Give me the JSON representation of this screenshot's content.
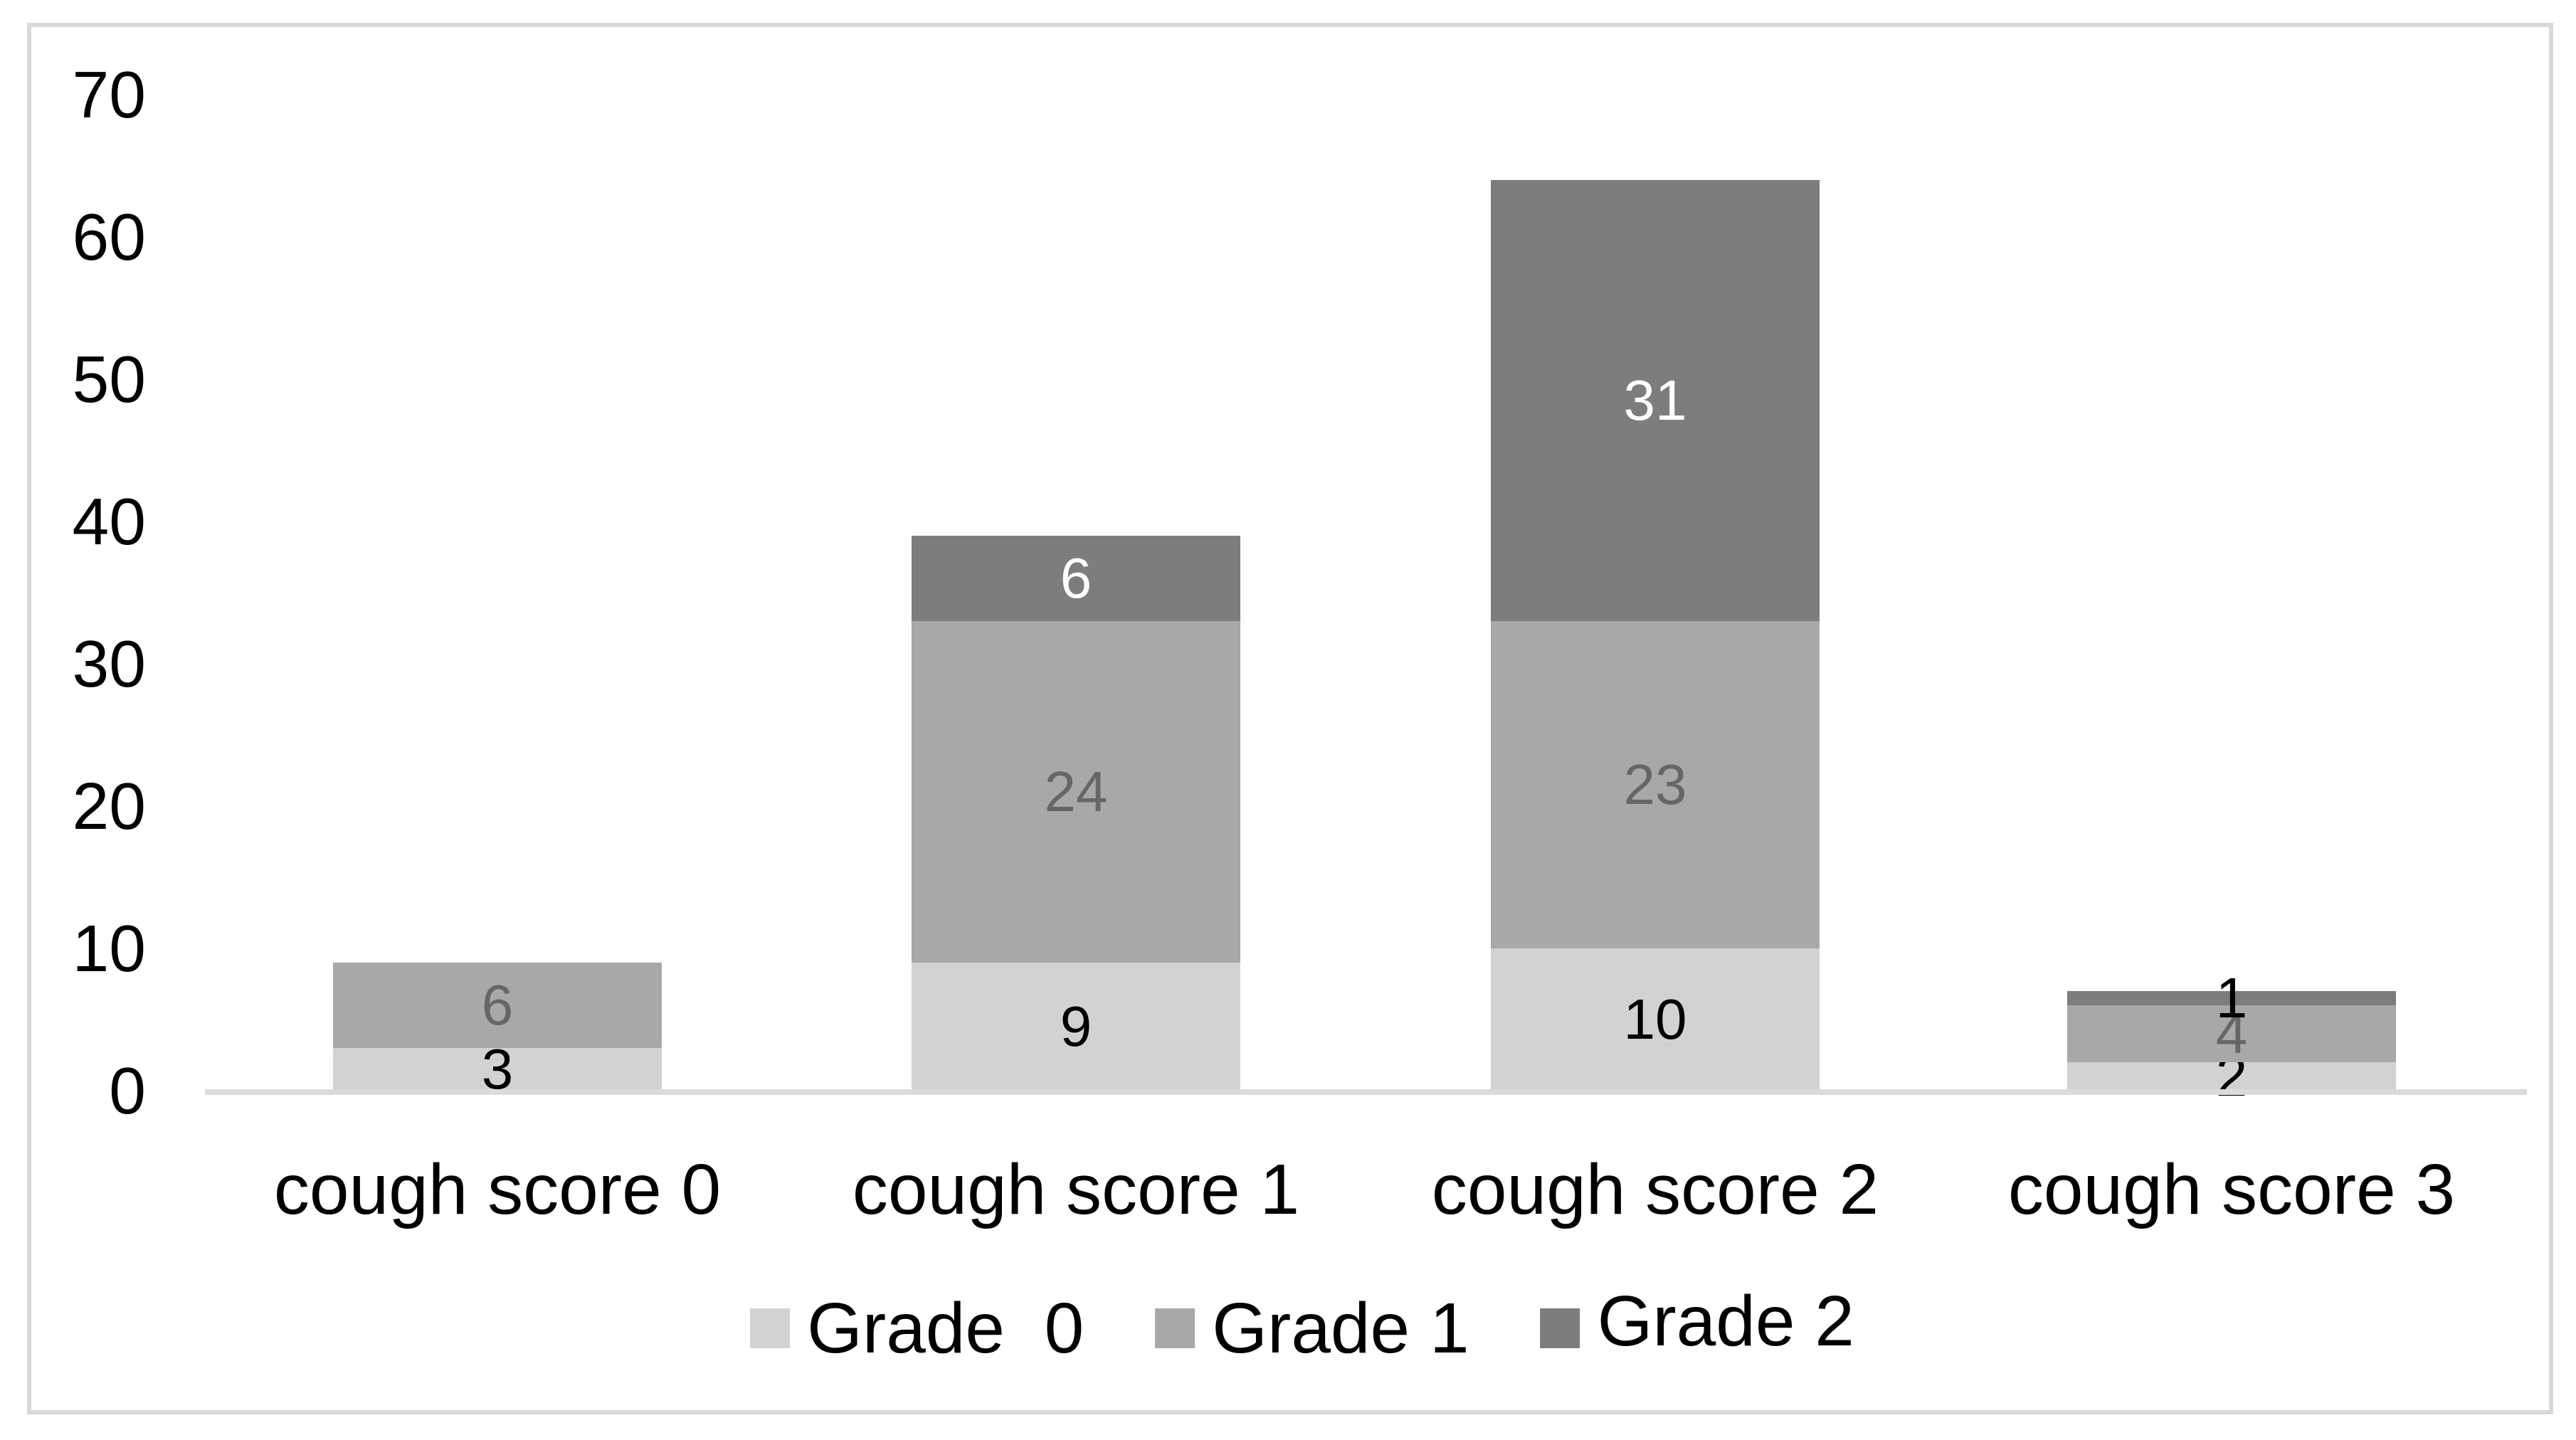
{
  "chart_data": {
    "type": "bar",
    "stacked": true,
    "title": "",
    "categories": [
      "cough score 0",
      "cough score 1",
      "cough score 2",
      "cough score 3"
    ],
    "series": [
      {
        "name": "Grade  0",
        "color": "#d2d2d2",
        "label_color": "#000000",
        "values": [
          3,
          9,
          10,
          2
        ]
      },
      {
        "name": "Grade 1",
        "color": "#a8a8a8",
        "label_color": "#666666",
        "values": [
          6,
          24,
          23,
          4
        ]
      },
      {
        "name": "Grade 2",
        "color": "#7d7d7d",
        "label_color": "#ffffff",
        "values": [
          0,
          6,
          31,
          1
        ]
      }
    ],
    "xlabel": "",
    "ylabel": "",
    "ylim": [
      0,
      70
    ],
    "yticks": [
      0,
      10,
      20,
      30,
      40,
      50,
      60,
      70
    ],
    "grid": false,
    "legend_position": "bottom"
  },
  "colors": {
    "background": "#ffffff",
    "frame_border": "#d9d9d9",
    "axis_line": "#dbdbdb",
    "tick_label_color": "#000000"
  }
}
